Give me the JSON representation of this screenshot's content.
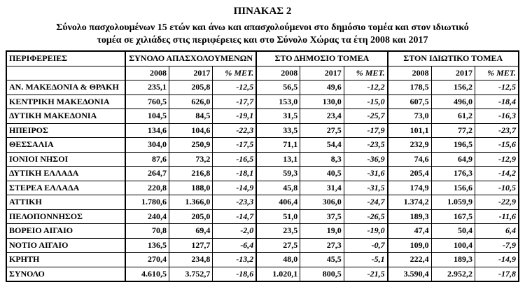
{
  "header": {
    "title": "ΠΙΝΑΚΑΣ 2",
    "subtitle_lines": [
      "Σύνολο πασχολουμένων 15 ετών και άνω και απασχολούμενοι στο δημόσιο τομέα  και στον ιδιωτικό",
      "τομέα σε χιλιάδες στις περιφέρειες και στο Σύνολο Χώρας τα έτη 2008 και 2017"
    ]
  },
  "table": {
    "corner": "ΠΕΡΙΦΕΡΕΙΕΣ",
    "groups": [
      "ΣΥΝΟΛΟ ΑΠΑΣΧΟΛΟΥΜΕΝΩΝ",
      "ΣΤΟ ΔΗΜΟΣΙΟ ΤΟΜΕΑ",
      "ΣΤΟΝ ΙΔΙΩΤΙΚΟ ΤΟΜΕΑ"
    ],
    "subheaders": [
      "2008",
      "2017",
      "% ΜΕΤ.",
      "2008",
      "2017",
      "% ΜΕΤ.",
      "2008",
      "2017",
      "% ΜΕΤ."
    ],
    "rows": [
      [
        "ΑΝ. ΜΑΚΕΔΟΝΙΑ & ΘΡΑΚΗ",
        "235,1",
        "205,8",
        "-12,5",
        "56,5",
        "49,6",
        "-12,2",
        "178,5",
        "156,2",
        "-12,5"
      ],
      [
        "ΚΕΝΤΡΙΚΗ ΜΑΚΕΔΟΝΙΑ",
        "760,5",
        "626,0",
        "-17,7",
        "153,0",
        "130,0",
        "-15,0",
        "607,5",
        "496,0",
        "-18,4"
      ],
      [
        "ΔΥΤΙΚΗ ΜΑΚΕΔΟΝΙΑ",
        "104,5",
        "84,5",
        "-19,1",
        "31,5",
        "23,4",
        "-25,7",
        "73,0",
        "61,2",
        "-16,3"
      ],
      [
        "ΗΠΕΙΡΟΣ",
        "134,6",
        "104,6",
        "-22,3",
        "33,5",
        "27,5",
        "-17,9",
        "101,1",
        "77,2",
        "-23,7"
      ],
      [
        "ΘΕΣΣΑΛΙΑ",
        "304,0",
        "250,9",
        "-17,5",
        "71,1",
        "54,4",
        "-23,5",
        "232,9",
        "196,5",
        "-15,6"
      ],
      [
        "ΙΟΝΙΟΙ ΝΗΣΟΙ",
        "87,6",
        "73,2",
        "-16,5",
        "13,1",
        "8,3",
        "-36,9",
        "74,6",
        "64,9",
        "-12,9"
      ],
      [
        "ΔΥΤΙΚΗ ΕΛΛΑΔΑ",
        "264,7",
        "216,8",
        "-18,1",
        "59,3",
        "40,5",
        "-31,6",
        "205,4",
        "176,3",
        "-14,2"
      ],
      [
        "ΣΤΕΡΕΑ ΕΛΛΑΔΑ",
        "220,8",
        "188,0",
        "-14,9",
        "45,8",
        "31,4",
        "-31,5",
        "174,9",
        "156,6",
        "-10,5"
      ],
      [
        "ΑΤΤΙΚΗ",
        "1.780,6",
        "1.366,0",
        "-23,3",
        "406,4",
        "306,0",
        "-24,7",
        "1.374,2",
        "1.059,9",
        "-22,9"
      ],
      [
        "ΠΕΛΟΠΟΝΝΗΣΟΣ",
        "240,4",
        "205,0",
        "-14,7",
        "51,0",
        "37,5",
        "-26,5",
        "189,3",
        "167,5",
        "-11,6"
      ],
      [
        "ΒΟΡΕΙΟ ΑΙΓΑΙΟ",
        "70,8",
        "69,4",
        "-2,0",
        "23,5",
        "19,0",
        "-19,0",
        "47,4",
        "50,4",
        "6,4"
      ],
      [
        "ΝΟΤΙΟ ΑΙΓΑΙΟ",
        "136,5",
        "127,7",
        "-6,4",
        "27,5",
        "27,3",
        "-0,7",
        "109,0",
        "100,4",
        "-7,9"
      ],
      [
        "ΚΡΗΤΗ",
        "270,4",
        "234,8",
        "-13,2",
        "48,0",
        "45,5",
        "-5,1",
        "222,4",
        "189,3",
        "-14,9"
      ],
      [
        "ΣΥΝΟΛΟ",
        "4.610,5",
        "3.752,7",
        "-18,6",
        "1.020,1",
        "800,5",
        "-21,5",
        "3.590,4",
        "2.952,2",
        "-17,8"
      ]
    ]
  }
}
